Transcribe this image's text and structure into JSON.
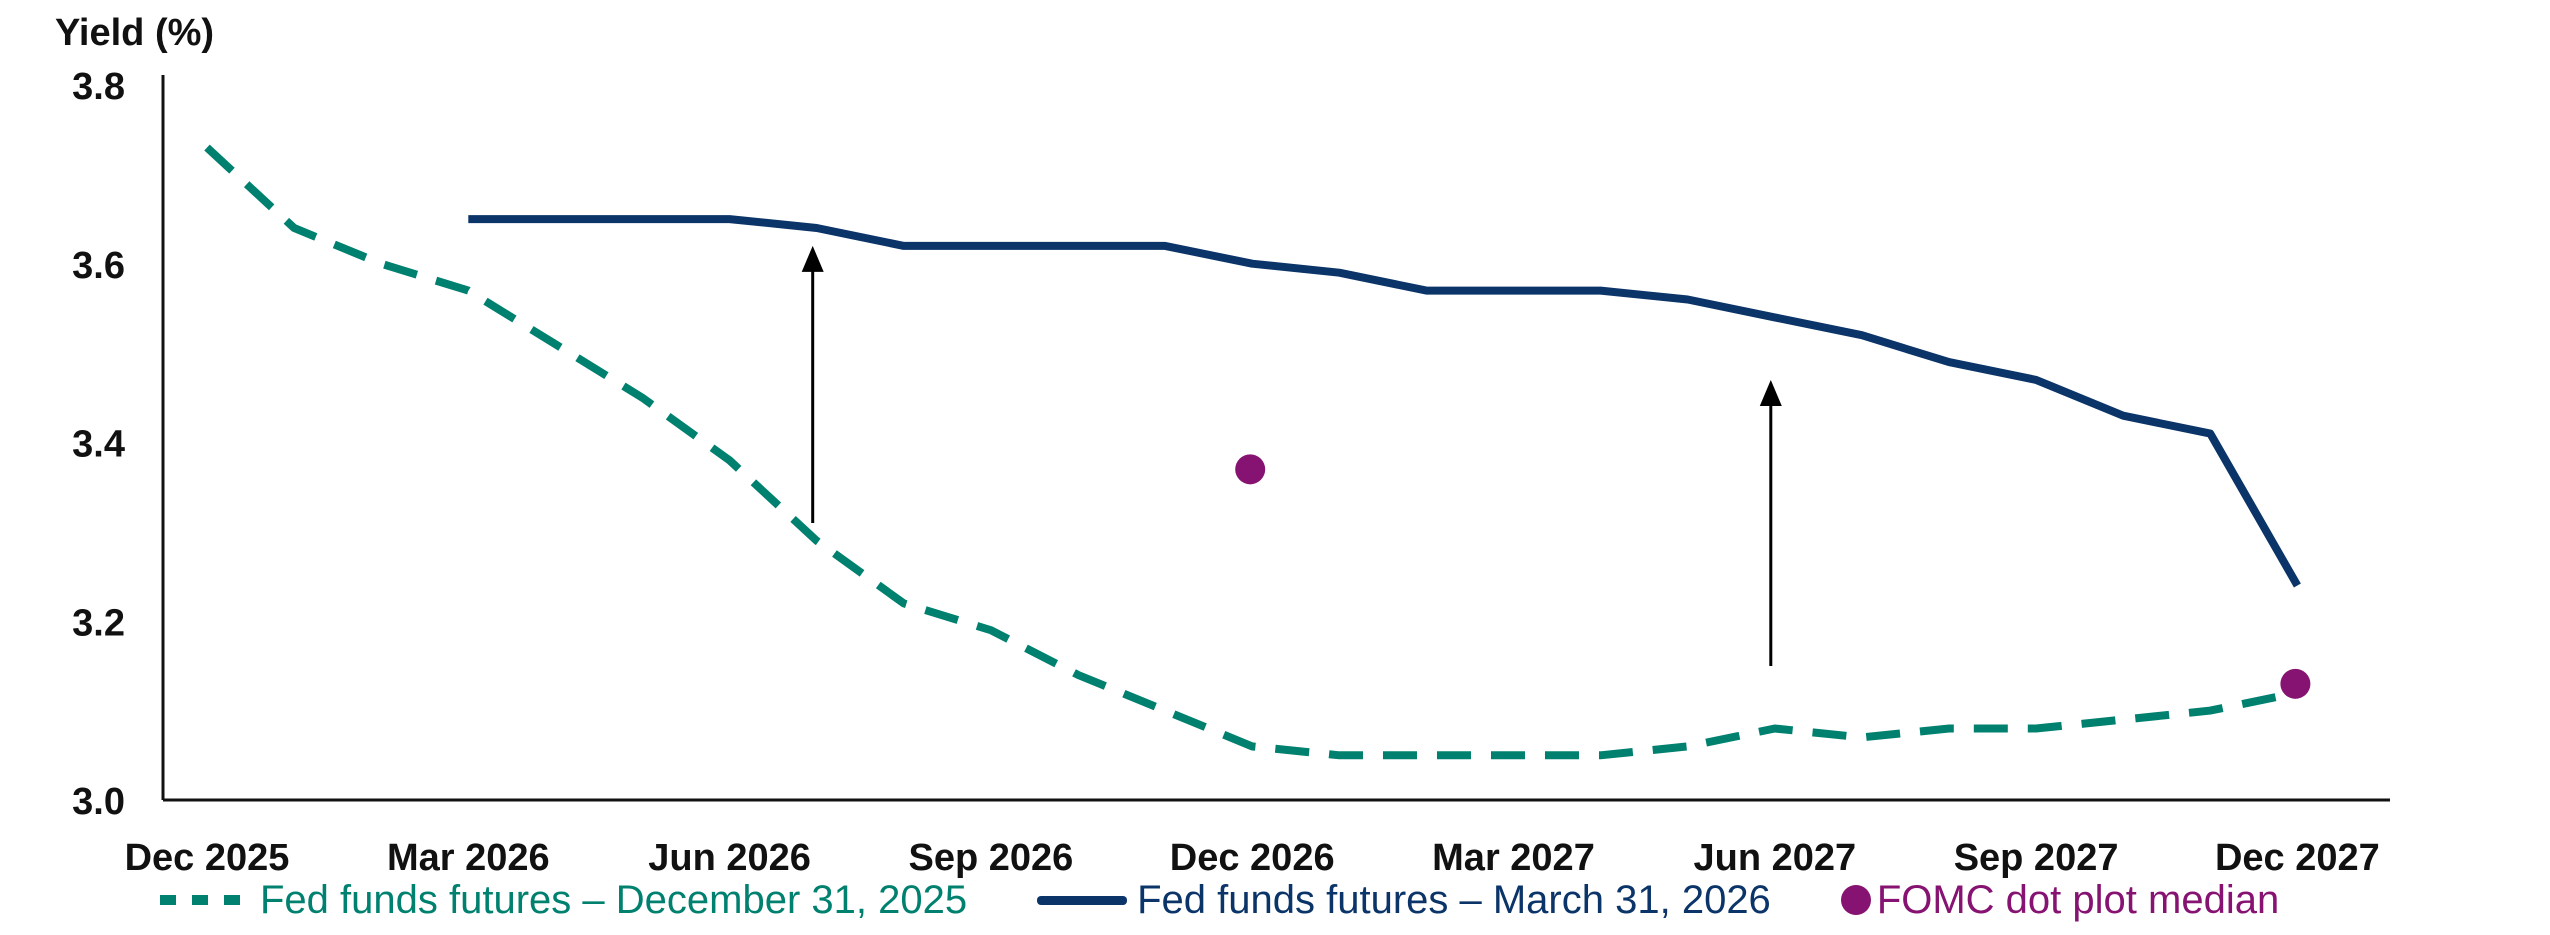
{
  "chart_data": {
    "type": "line",
    "title": "",
    "ylabel": "Yield (%)",
    "xlabel": "",
    "ylim": [
      3.0,
      3.8
    ],
    "yticks": [
      "3.0",
      "3.2",
      "3.4",
      "3.6",
      "3.8"
    ],
    "xtick_labels": [
      "Dec 2025",
      "Mar 2026",
      "Jun 2026",
      "Sep 2026",
      "Dec 2026",
      "Mar 2027",
      "Jun 2027",
      "Sep 2027",
      "Dec 2027"
    ],
    "x": [
      "Dec 2025",
      "Jan 2026",
      "Feb 2026",
      "Mar 2026",
      "Apr 2026",
      "May 2026",
      "Jun 2026",
      "Jul 2026",
      "Aug 2026",
      "Sep 2026",
      "Oct 2026",
      "Nov 2026",
      "Dec 2026",
      "Jan 2027",
      "Feb 2027",
      "Mar 2027",
      "Apr 2027",
      "May 2027",
      "Jun 2027",
      "Jul 2027",
      "Aug 2027",
      "Sep 2027",
      "Oct 2027",
      "Nov 2027",
      "Dec 2027"
    ],
    "grid": false,
    "legend_position": "bottom",
    "series": [
      {
        "name": "Fed funds futures – December 31, 2025",
        "style": "dashed",
        "color": "#00806f",
        "values": [
          3.73,
          3.64,
          3.6,
          3.57,
          3.51,
          3.45,
          3.38,
          3.29,
          3.22,
          3.19,
          3.14,
          3.1,
          3.06,
          3.05,
          3.05,
          3.05,
          3.05,
          3.06,
          3.08,
          3.07,
          3.08,
          3.08,
          3.09,
          3.1,
          3.12
        ]
      },
      {
        "name": "Fed funds futures – March 31, 2026",
        "style": "solid",
        "color": "#0b3468",
        "values": [
          null,
          null,
          null,
          3.65,
          3.65,
          3.65,
          3.65,
          3.64,
          3.62,
          3.62,
          3.62,
          3.62,
          3.6,
          3.59,
          3.57,
          3.57,
          3.57,
          3.56,
          3.54,
          3.52,
          3.49,
          3.47,
          3.43,
          3.41,
          3.24
        ]
      },
      {
        "name": "FOMC dot plot median",
        "style": "marker",
        "color": "#861371",
        "points": [
          {
            "x": "Dec 2026",
            "y": 3.37
          },
          {
            "x": "Dec 2027",
            "y": 3.13
          }
        ]
      }
    ],
    "annotations": [
      {
        "type": "arrow-up",
        "x": "Jul 2026",
        "from": 3.31,
        "to": 3.62
      },
      {
        "type": "arrow-up",
        "x": "Jun 2027",
        "from": 3.15,
        "to": 3.47
      }
    ]
  },
  "legend": {
    "items": [
      {
        "label": "Fed funds futures – December 31, 2025",
        "color": "#00806f"
      },
      {
        "label": "Fed funds futures – March 31, 2026",
        "color": "#0b3468"
      },
      {
        "label": "FOMC dot plot median",
        "color": "#861371"
      }
    ]
  }
}
